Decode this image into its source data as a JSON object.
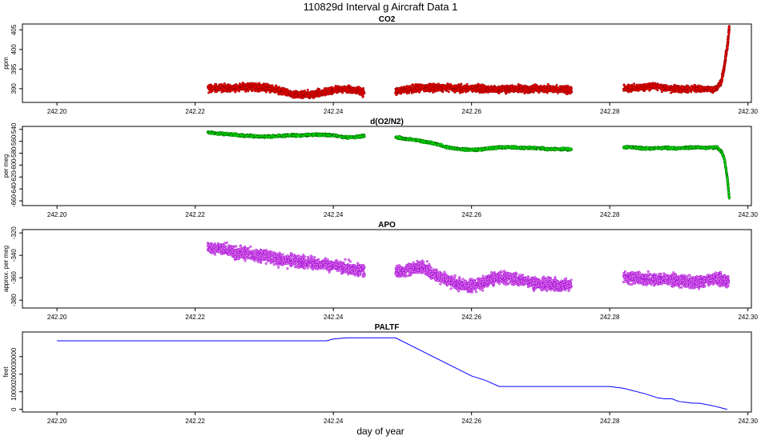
{
  "figure": {
    "title": "110829d   Interval g Aircraft Data 1",
    "xlabel": "day of year"
  },
  "chart_data": [
    {
      "type": "scatter",
      "title": "CO2",
      "ylabel": "ppm",
      "xlim": [
        242.195,
        242.3005
      ],
      "ylim": [
        386.5,
        406.5
      ],
      "xticks": [
        242.2,
        242.22,
        242.24,
        242.26,
        242.28,
        242.3
      ],
      "xtick_labels": [
        "242.20",
        "242.22",
        "242.24",
        "242.26",
        "242.28",
        "242.30"
      ],
      "yticks": [
        390,
        395,
        400,
        405
      ],
      "ytick_labels": [
        "390",
        "395",
        "400",
        "405"
      ],
      "series": [
        {
          "color": "#ff0000",
          "edge_color": "#8b0000",
          "segments": [
            {
              "x": [
                242.2218,
                242.2235,
                242.225,
                242.2265,
                242.228,
                242.2295,
                242.231,
                242.2325,
                242.234,
                242.2355,
                242.237,
                242.2385,
                242.24,
                242.2415,
                242.243,
                242.2445
              ],
              "y": [
                390.0,
                390.2,
                390.2,
                390.4,
                390.5,
                390.3,
                390.0,
                389.2,
                388.6,
                388.4,
                388.6,
                389.0,
                389.6,
                390.0,
                389.6,
                389.0
              ],
              "noise": 0.7
            },
            {
              "x": [
                242.249,
                242.2505,
                242.252,
                242.2535,
                242.255,
                242.2565,
                242.258,
                242.2595,
                242.261,
                242.2625,
                242.264,
                242.2655,
                242.267,
                242.2685,
                242.27,
                242.2715,
                242.273,
                242.2745
              ],
              "y": [
                389.4,
                389.8,
                390.0,
                390.2,
                390.3,
                390.2,
                390.0,
                390.0,
                390.1,
                389.9,
                389.8,
                390.0,
                390.0,
                389.8,
                390.0,
                389.9,
                389.8,
                389.8
              ],
              "noise": 0.7
            },
            {
              "x": [
                242.282,
                242.2835,
                242.285,
                242.2865,
                242.288,
                242.2895,
                242.291,
                242.2925,
                242.294,
                242.2955,
                242.2962,
                242.2966,
                242.297,
                242.2973
              ],
              "y": [
                390.0,
                390.2,
                390.4,
                390.6,
                390.2,
                389.9,
                389.8,
                390.0,
                389.9,
                390.0,
                392.0,
                396.0,
                400.5,
                405.5
              ],
              "noise": 0.6
            }
          ]
        }
      ]
    },
    {
      "type": "scatter",
      "title": "d(O2/N2)",
      "ylabel": "per meg",
      "xlim": [
        242.195,
        242.3005
      ],
      "ylim": [
        -668,
        -535
      ],
      "xticks": [
        242.2,
        242.22,
        242.24,
        242.26,
        242.28,
        242.3
      ],
      "xtick_labels": [
        "242.20",
        "242.22",
        "242.24",
        "242.26",
        "242.28",
        "242.30"
      ],
      "yticks": [
        -540,
        -560,
        -580,
        -600,
        -620,
        -640,
        -660
      ],
      "ytick_labels": [
        "-540",
        "-560",
        "-580",
        "-600",
        "-620",
        "-640",
        "-660"
      ],
      "series": [
        {
          "color": "#00ff00",
          "edge_color": "#006400",
          "segments": [
            {
              "x": [
                242.2218,
                242.2235,
                242.225,
                242.2265,
                242.228,
                242.2295,
                242.231,
                242.2325,
                242.234,
                242.2355,
                242.237,
                242.2385,
                242.24,
                242.2415,
                242.243,
                242.2445
              ],
              "y": [
                -545,
                -547,
                -548,
                -550,
                -551,
                -552,
                -552,
                -551,
                -550,
                -550,
                -549,
                -549,
                -550,
                -553,
                -553,
                -551
              ],
              "noise": 1.5
            },
            {
              "x": [
                242.249,
                242.2505,
                242.252,
                242.2535,
                242.255,
                242.2565,
                242.258,
                242.2595,
                242.261,
                242.2625,
                242.264,
                242.2655,
                242.267,
                242.2685,
                242.27,
                242.2715,
                242.273,
                242.2745
              ],
              "y": [
                -553,
                -556,
                -558,
                -561,
                -565,
                -570,
                -573,
                -574,
                -574,
                -572,
                -570,
                -570,
                -571,
                -571,
                -572,
                -573,
                -573,
                -574
              ],
              "noise": 1.5
            },
            {
              "x": [
                242.282,
                242.2835,
                242.285,
                242.2865,
                242.288,
                242.2895,
                242.291,
                242.2925,
                242.294,
                242.2955,
                242.2962,
                242.2966,
                242.297,
                242.2973
              ],
              "y": [
                -570,
                -570,
                -572,
                -572,
                -571,
                -572,
                -571,
                -570,
                -571,
                -570,
                -578,
                -590,
                -620,
                -655
              ],
              "noise": 1.5
            }
          ]
        }
      ]
    },
    {
      "type": "scatter",
      "title": "APO",
      "ylabel": "approx. per meg",
      "xlim": [
        242.195,
        242.3005
      ],
      "ylim": [
        -387,
        -317
      ],
      "xticks": [
        242.2,
        242.22,
        242.24,
        242.26,
        242.28,
        242.3
      ],
      "xtick_labels": [
        "242.20",
        "242.22",
        "242.24",
        "242.26",
        "242.28",
        "242.30"
      ],
      "yticks": [
        -320,
        -340,
        -360,
        -380
      ],
      "ytick_labels": [
        "-320",
        "-340",
        "-360",
        "-380"
      ],
      "series": [
        {
          "color": "#ee82ee",
          "edge_color": "#9400d3",
          "segments": [
            {
              "x": [
                242.2218,
                242.2235,
                242.225,
                242.2265,
                242.228,
                242.2295,
                242.231,
                242.2325,
                242.234,
                242.2355,
                242.237,
                242.2385,
                242.24,
                242.2415,
                242.243,
                242.2445
              ],
              "y": [
                -333,
                -334,
                -336,
                -338,
                -339,
                -340,
                -342,
                -344,
                -345,
                -346,
                -347,
                -348,
                -349,
                -351,
                -352,
                -354
              ],
              "noise": 4
            },
            {
              "x": [
                242.249,
                242.2505,
                242.252,
                242.2535,
                242.255,
                242.2565,
                242.258,
                242.2595,
                242.261,
                242.2625,
                242.264,
                242.2655,
                242.267,
                242.2685,
                242.27,
                242.2715,
                242.273,
                242.2745
              ],
              "y": [
                -355,
                -353,
                -350,
                -352,
                -358,
                -362,
                -366,
                -368,
                -366,
                -362,
                -360,
                -360,
                -362,
                -364,
                -365,
                -366,
                -367,
                -366
              ],
              "noise": 4
            },
            {
              "x": [
                242.282,
                242.2835,
                242.285,
                242.2865,
                242.288,
                242.2895,
                242.291,
                242.2925,
                242.294,
                242.2955,
                242.2965,
                242.2972
              ],
              "y": [
                -359,
                -360,
                -361,
                -362,
                -361,
                -362,
                -363,
                -364,
                -362,
                -361,
                -362,
                -364
              ],
              "noise": 4
            }
          ]
        }
      ]
    },
    {
      "type": "line",
      "title": "PALTF",
      "ylabel": "feet",
      "xlim": [
        242.195,
        242.3005
      ],
      "ylim": [
        -1500,
        44000
      ],
      "xticks": [
        242.2,
        242.22,
        242.24,
        242.26,
        242.28,
        242.3
      ],
      "xtick_labels": [
        "242.20",
        "242.22",
        "242.24",
        "242.26",
        "242.28",
        "242.30"
      ],
      "yticks": [
        0,
        10000,
        20000,
        30000
      ],
      "ytick_labels": [
        "0",
        "10000",
        "20000",
        "30000"
      ],
      "series": [
        {
          "color": "#0000ff",
          "x": [
            242.2,
            242.22,
            242.239,
            242.24,
            242.242,
            242.248,
            242.249,
            242.26,
            242.262,
            242.264,
            242.27,
            242.275,
            242.28,
            242.282,
            242.285,
            242.287,
            242.288,
            242.289,
            242.29,
            242.291,
            242.292,
            242.293,
            242.295,
            242.297
          ],
          "y": [
            39000,
            39000,
            39000,
            40000,
            40700,
            40700,
            40700,
            19000,
            16500,
            13000,
            13000,
            13000,
            13000,
            12000,
            9000,
            6500,
            6000,
            6000,
            4500,
            4000,
            3500,
            3500,
            2000,
            0
          ]
        }
      ]
    }
  ]
}
